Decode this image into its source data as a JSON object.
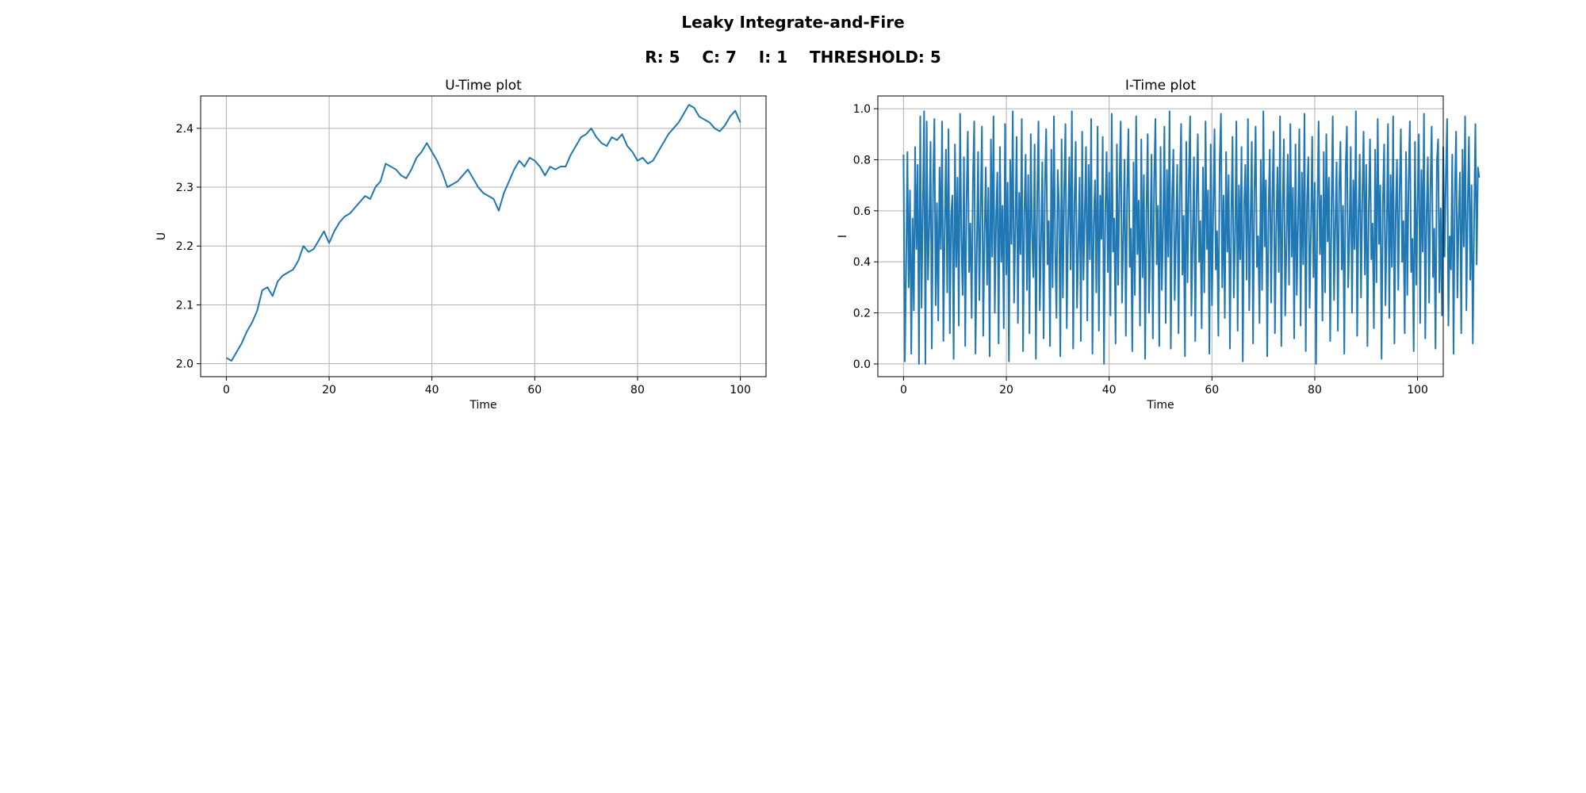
{
  "figure": {
    "title": "Leaky Integrate-and-Fire",
    "params": [
      {
        "label": "R:",
        "value": "5"
      },
      {
        "label": "C:",
        "value": "7"
      },
      {
        "label": "I:",
        "value": "1"
      },
      {
        "label": "THRESHOLD:",
        "value": "5"
      }
    ]
  },
  "colors": {
    "line": "#1f77b4",
    "grid": "#b0b0b0",
    "frame": "#000000"
  },
  "chart_data": [
    {
      "type": "line",
      "title": "U-Time plot",
      "xlabel": "Time",
      "ylabel": "U",
      "xlim": [
        -5,
        105
      ],
      "ylim": [
        1.978,
        2.455
      ],
      "xticks": [
        0,
        20,
        40,
        60,
        80,
        100
      ],
      "xtick_labels": [
        "0",
        "20",
        "40",
        "60",
        "80",
        "100"
      ],
      "yticks": [
        2.0,
        2.1,
        2.2,
        2.3,
        2.4
      ],
      "ytick_labels": [
        "2.0",
        "2.1",
        "2.2",
        "2.3",
        "2.4"
      ],
      "grid": true,
      "series": [
        {
          "x": [
            0,
            1,
            2,
            3,
            4,
            5,
            6,
            7,
            8,
            9,
            10,
            11,
            12,
            13,
            14,
            15,
            16,
            17,
            18,
            19,
            20,
            21,
            22,
            23,
            24,
            25,
            26,
            27,
            28,
            29,
            30,
            31,
            32,
            33,
            34,
            35,
            36,
            37,
            38,
            39,
            40,
            41,
            42,
            43,
            44,
            45,
            46,
            47,
            48,
            49,
            50,
            51,
            52,
            53,
            54,
            55,
            56,
            57,
            58,
            59,
            60,
            61,
            62,
            63,
            64,
            65,
            66,
            67,
            68,
            69,
            70,
            71,
            72,
            73,
            74,
            75,
            76,
            77,
            78,
            79,
            80,
            81,
            82,
            83,
            84,
            85,
            86,
            87,
            88,
            89,
            90,
            91,
            92,
            93,
            94,
            95,
            96,
            97,
            98,
            99,
            100
          ],
          "values": [
            2.01,
            2.005,
            2.02,
            2.035,
            2.055,
            2.07,
            2.09,
            2.125,
            2.13,
            2.115,
            2.14,
            2.15,
            2.155,
            2.16,
            2.175,
            2.2,
            2.19,
            2.195,
            2.21,
            2.225,
            2.205,
            2.225,
            2.24,
            2.25,
            2.255,
            2.265,
            2.275,
            2.285,
            2.28,
            2.3,
            2.31,
            2.34,
            2.335,
            2.33,
            2.32,
            2.315,
            2.33,
            2.35,
            2.36,
            2.375,
            2.36,
            2.345,
            2.325,
            2.3,
            2.305,
            2.31,
            2.32,
            2.33,
            2.315,
            2.3,
            2.29,
            2.285,
            2.28,
            2.26,
            2.29,
            2.31,
            2.33,
            2.345,
            2.335,
            2.35,
            2.345,
            2.335,
            2.32,
            2.335,
            2.33,
            2.335,
            2.335,
            2.355,
            2.37,
            2.385,
            2.39,
            2.4,
            2.385,
            2.375,
            2.37,
            2.385,
            2.38,
            2.39,
            2.37,
            2.36,
            2.345,
            2.35,
            2.34,
            2.345,
            2.36,
            2.375,
            2.39,
            2.4,
            2.41,
            2.425,
            2.44,
            2.435,
            2.42,
            2.415,
            2.41,
            2.4,
            2.395,
            2.405,
            2.42,
            2.43,
            2.41
          ]
        }
      ]
    },
    {
      "type": "line",
      "title": "I-Time plot",
      "xlabel": "Time",
      "ylabel": "I",
      "xlim": [
        -5,
        105
      ],
      "ylim": [
        -0.05,
        1.05
      ],
      "xticks": [
        0,
        20,
        40,
        60,
        80,
        100
      ],
      "xtick_labels": [
        "0",
        "20",
        "40",
        "60",
        "80",
        "100"
      ],
      "yticks": [
        0.0,
        0.2,
        0.4,
        0.6,
        0.8,
        1.0
      ],
      "ytick_labels": [
        "0.0",
        "0.2",
        "0.4",
        "0.6",
        "0.8",
        "1.0"
      ],
      "grid": true,
      "series": [
        {
          "x_start": 0,
          "x_step": 0.25,
          "values": [
            0.82,
            0.01,
            0.37,
            0.83,
            0.3,
            0.68,
            0.04,
            0.57,
            0.21,
            0.85,
            0.45,
            0.78,
            0.0,
            0.97,
            0.22,
            0.61,
            0.99,
            0.0,
            0.95,
            0.33,
            0.54,
            0.87,
            0.06,
            0.7,
            0.96,
            0.23,
            0.63,
            0.17,
            0.77,
            0.45,
            0.95,
            0.09,
            0.52,
            0.84,
            0.28,
            0.92,
            0.12,
            0.58,
            0.66,
            0.02,
            0.86,
            0.38,
            0.73,
            0.15,
            0.98,
            0.49,
            0.27,
            0.81,
            0.07,
            0.64,
            0.91,
            0.36,
            0.55,
            0.18,
            0.72,
            0.95,
            0.04,
            0.44,
            0.83,
            0.25,
            0.6,
            0.93,
            0.11,
            0.5,
            0.77,
            0.31,
            0.69,
            0.03,
            0.88,
            0.42,
            0.97,
            0.2,
            0.57,
            0.75,
            0.08,
            0.85,
            0.4,
            0.62,
            0.14,
            0.94,
            0.35,
            0.71,
            0.01,
            0.8,
            0.47,
            0.99,
            0.24,
            0.53,
            0.89,
            0.16,
            0.67,
            0.43,
            0.96,
            0.05,
            0.59,
            0.82,
            0.29,
            0.74,
            0.12,
            0.9,
            0.51,
            0.34,
            0.86,
            0.02,
            0.65,
            0.95,
            0.21,
            0.48,
            0.79,
            0.1,
            0.7,
            0.92,
            0.39,
            0.56,
            0.07,
            0.84,
            0.3,
            0.97,
            0.45,
            0.18,
            0.76,
            0.61,
            0.03,
            0.88,
            0.26,
            0.68,
            0.94,
            0.14,
            0.52,
            0.81,
            0.37,
            0.99,
            0.06,
            0.63,
            0.87,
            0.22,
            0.46,
            0.73,
            0.09,
            0.91,
            0.33,
            0.58,
            0.85,
            0.17,
            0.78,
            0.41,
            0.96,
            0.04,
            0.55,
            0.72,
            0.28,
            0.93,
            0.13,
            0.66,
            0.49,
            0.89,
            0.0,
            0.6,
            0.83,
            0.36,
            0.75,
            0.19,
            0.98,
            0.44,
            0.57,
            0.08,
            0.86,
            0.31,
            0.7,
            0.95,
            0.24,
            0.5,
            0.8,
            0.11,
            0.67,
            0.92,
            0.38,
            0.53,
            0.05,
            0.79,
            0.27,
            0.97,
            0.43,
            0.64,
            0.15,
            0.88,
            0.34,
            0.74,
            0.02,
            0.59,
            0.9,
            0.2,
            0.47,
            0.82,
            0.1,
            0.71,
            0.96,
            0.39,
            0.62,
            0.07,
            0.85,
            0.29,
            0.54,
            0.93,
            0.16,
            0.76,
            0.42,
            0.99,
            0.06,
            0.65,
            0.84,
            0.25,
            0.51,
            0.78,
            0.12,
            0.69,
            0.94,
            0.35,
            0.58,
            0.03,
            0.87,
            0.32,
            0.73,
            0.97,
            0.19,
            0.48,
            0.81,
            0.09,
            0.63,
            0.9,
            0.4,
            0.56,
            0.14,
            0.77,
            0.28,
            0.95,
            0.45,
            0.68,
            0.04,
            0.86,
            0.23,
            0.6,
            0.92,
            0.37,
            0.52,
            0.11,
            0.79,
            0.98,
            0.3,
            0.66,
            0.18,
            0.83,
            0.44,
            0.74,
            0.06,
            0.57,
            0.89,
            0.26,
            0.49,
            0.95,
            0.13,
            0.7,
            0.41,
            0.85,
            0.01,
            0.62,
            0.78,
            0.33,
            0.96,
            0.21,
            0.55,
            0.87,
            0.08,
            0.67,
            0.93,
            0.38,
            0.5,
            0.16,
            0.8,
            0.29,
            0.99,
            0.46,
            0.72,
            0.03,
            0.59,
            0.84,
            0.24,
            0.65,
            0.91,
            0.12,
            0.53,
            0.77,
            0.36,
            0.97,
            0.07,
            0.61,
            0.88,
            0.19,
            0.47,
            0.82,
            0.31,
            0.94,
            0.42,
            0.69,
            0.1,
            0.86,
            0.27,
            0.56,
            0.92,
            0.15,
            0.75,
            0.39,
            0.98,
            0.05,
            0.64,
            0.81,
            0.22,
            0.51,
            0.89,
            0.34,
            0.71,
            0.0,
            0.58,
            0.95,
            0.43,
            0.66,
            0.17,
            0.83,
            0.28,
            0.9,
            0.48,
            0.73,
            0.09,
            0.6,
            0.97,
            0.25,
            0.54,
            0.79,
            0.13,
            0.68,
            0.87,
            0.37,
            0.62,
            0.04,
            0.76,
            0.93,
            0.3,
            0.5,
            0.85,
            0.2,
            0.72,
            0.45,
            0.99,
            0.11,
            0.57,
            0.82,
            0.26,
            0.65,
            0.91,
            0.35,
            0.78,
            0.07,
            0.6,
            0.88,
            0.41,
            0.55,
            0.14,
            0.84,
            0.32,
            0.96,
            0.47,
            0.7,
            0.02,
            0.63,
            0.86,
            0.23,
            0.52,
            0.94,
            0.18,
            0.74,
            0.38,
            0.97,
            0.08,
            0.59,
            0.8,
            0.29,
            0.67,
            0.92,
            0.4,
            0.56,
            0.12,
            0.83,
            0.27,
            0.71,
            0.95,
            0.36,
            0.49,
            0.05,
            0.87,
            0.31,
            0.64,
            0.9,
            0.16,
            0.76,
            0.44,
            0.98,
            0.1,
            0.58,
            0.81,
            0.24,
            0.69,
            0.93,
            0.34,
            0.53,
            0.06,
            0.79,
            0.88,
            0.28,
            0.61,
            0.19,
            0.85,
            0.42,
            0.73,
            0.96,
            0.15,
            0.5,
            0.37,
            0.82,
            0.04,
            0.66,
            0.91,
            0.26,
            0.57,
            0.75,
            0.12,
            0.84,
            0.46,
            0.97,
            0.21,
            0.62,
            0.89,
            0.33,
            0.7,
            0.08,
            0.55,
            0.94,
            0.39,
            0.77,
            0.73
          ]
        }
      ]
    }
  ]
}
